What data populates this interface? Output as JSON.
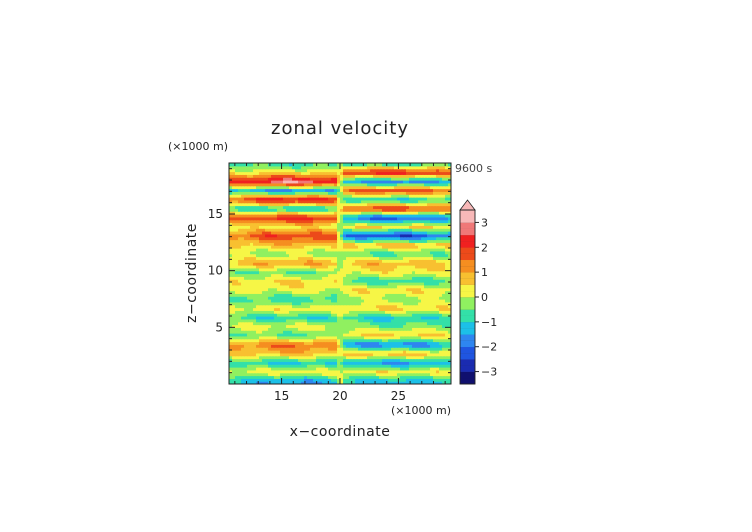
{
  "chart_data": {
    "type": "heatmap",
    "title": "zonal velocity",
    "xlabel": "x−coordinate",
    "ylabel": "z−coordinate",
    "x_unit": "(×1000 m)",
    "y_unit": "(×1000 m)",
    "time_label": "9600 s",
    "xlim": [
      10.5,
      29.5
    ],
    "ylim": [
      0,
      19.5
    ],
    "x_ticks": [
      15,
      20,
      25
    ],
    "x_tick_labels": [
      "15",
      "20",
      "25"
    ],
    "y_ticks": [
      5,
      10,
      15
    ],
    "y_tick_labels": [
      "5",
      "10",
      "15"
    ],
    "colorbar": {
      "min": -3.5,
      "max": 3.5,
      "step": 0.25,
      "ticks": [
        -3,
        -2,
        -1,
        0,
        1,
        2,
        3
      ],
      "tick_labels": [
        "−3",
        "−2",
        "−1",
        "0",
        "1",
        "2",
        "3"
      ],
      "extend": "max"
    },
    "colors": [
      "#10106e",
      "#1a2bb0",
      "#1f55e0",
      "#2e86f0",
      "#1cc0e8",
      "#33e0a8",
      "#90f060",
      "#f6f646",
      "#f8c030",
      "#f58e20",
      "#ec4a1a",
      "#f02020",
      "#f07878",
      "#f8b8b8"
    ],
    "band_rows_z": [
      0.3,
      1.1,
      1.9,
      2.7,
      3.5,
      4.3,
      5.1,
      5.9,
      6.7,
      7.5,
      8.3,
      9.1,
      9.9,
      10.7,
      11.5,
      12.3,
      13.1,
      13.9,
      14.7,
      15.5,
      16.3,
      17.1,
      17.9,
      18.7,
      19.4
    ],
    "band_values_left": [
      -1.5,
      0.3,
      -1.2,
      0.8,
      1.6,
      -0.6,
      0.2,
      -1.0,
      0.4,
      -0.9,
      0.2,
      0.5,
      -0.6,
      1.1,
      -0.3,
      0.8,
      2.0,
      0.3,
      2.4,
      -1.3,
      2.6,
      -1.7,
      3.0,
      0.5,
      -0.8
    ],
    "band_values_right": [
      -1.3,
      0.4,
      -1.6,
      0.9,
      -2.0,
      0.7,
      -0.4,
      -1.1,
      0.6,
      -0.2,
      0.5,
      -0.8,
      0.3,
      0.9,
      -0.7,
      1.0,
      -2.5,
      0.6,
      -2.3,
      2.2,
      -1.1,
      2.0,
      -1.9,
      2.5,
      -0.8
    ]
  }
}
